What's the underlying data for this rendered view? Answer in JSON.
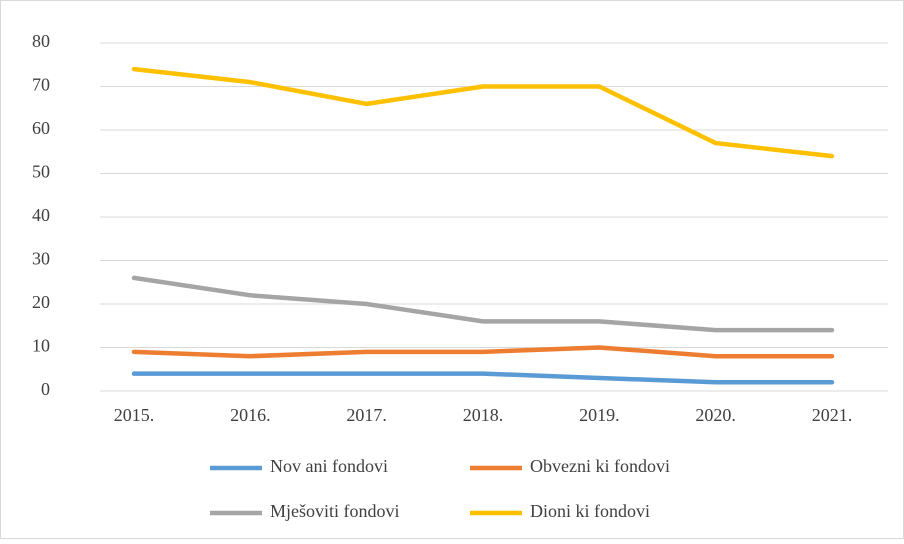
{
  "chart_data": {
    "type": "line",
    "categories": [
      "2015.",
      "2016.",
      "2017.",
      "2018.",
      "2019.",
      "2020.",
      "2021."
    ],
    "series": [
      {
        "name": "Nov ani fondovi",
        "color": "#5b9bd5",
        "values": [
          4,
          4,
          4,
          4,
          3,
          2,
          2
        ]
      },
      {
        "name": "Obvezni ki fondovi",
        "color": "#ed7d31",
        "values": [
          9,
          8,
          9,
          9,
          10,
          8,
          8
        ]
      },
      {
        "name": "Mješoviti fondovi",
        "color": "#a5a5a5",
        "values": [
          26,
          22,
          20,
          16,
          16,
          14,
          14
        ]
      },
      {
        "name": "Dioni ki fondovi",
        "color": "#ffc000",
        "values": [
          74,
          71,
          66,
          70,
          70,
          57,
          54
        ]
      }
    ],
    "ylim": [
      0,
      80
    ],
    "yticks": [
      0,
      10,
      20,
      30,
      40,
      50,
      60,
      70,
      80
    ],
    "grid": true,
    "legend": "bottom"
  }
}
